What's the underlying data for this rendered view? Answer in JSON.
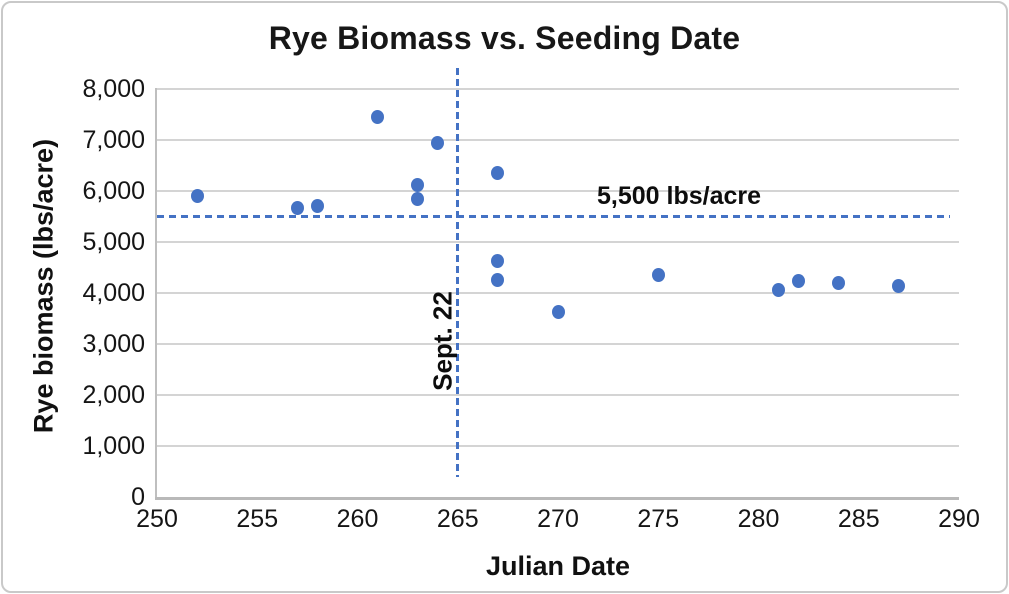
{
  "chart_data": {
    "type": "scatter",
    "title": "Rye Biomass vs. Seeding Date",
    "xlabel": "Julian Date",
    "ylabel": "Rye biomass (lbs/acre)",
    "xlim": [
      250,
      290
    ],
    "ylim": [
      0,
      8000
    ],
    "x_ticks": [
      250,
      255,
      260,
      265,
      270,
      275,
      280,
      285,
      290
    ],
    "y_ticks": [
      0,
      1000,
      2000,
      3000,
      4000,
      5000,
      6000,
      7000,
      8000
    ],
    "y_tick_labels": [
      "0",
      "1,000",
      "2,000",
      "3,000",
      "4,000",
      "5,000",
      "6,000",
      "7,000",
      "8,000"
    ],
    "grid": "horizontal",
    "legend": "none",
    "marker_color": "#4472C4",
    "points": [
      {
        "x": 252,
        "y": 5900
      },
      {
        "x": 257,
        "y": 5660
      },
      {
        "x": 258,
        "y": 5700
      },
      {
        "x": 261,
        "y": 7450
      },
      {
        "x": 263,
        "y": 6120
      },
      {
        "x": 263,
        "y": 5840
      },
      {
        "x": 264,
        "y": 6940
      },
      {
        "x": 267,
        "y": 6350
      },
      {
        "x": 267,
        "y": 4620
      },
      {
        "x": 267,
        "y": 4250
      },
      {
        "x": 270,
        "y": 3620
      },
      {
        "x": 275,
        "y": 4350
      },
      {
        "x": 281,
        "y": 4050
      },
      {
        "x": 282,
        "y": 4230
      },
      {
        "x": 284,
        "y": 4190
      },
      {
        "x": 287,
        "y": 4140
      }
    ],
    "reference_lines": [
      {
        "orientation": "horizontal",
        "value": 5500,
        "label": "5,500 lbs/acre",
        "color": "#4472C4",
        "style": "dashed"
      },
      {
        "orientation": "vertical",
        "value": 265,
        "label": "Sept. 22",
        "color": "#4472C4",
        "style": "dashed"
      }
    ]
  }
}
